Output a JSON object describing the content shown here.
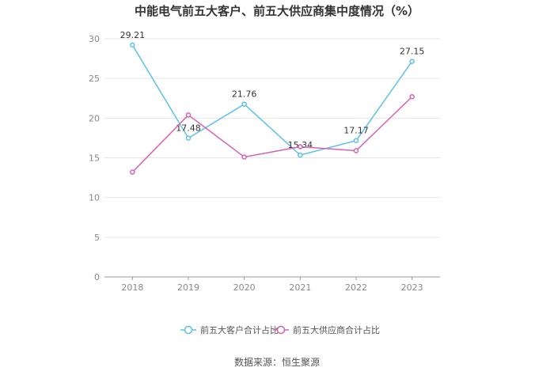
{
  "chart_data": {
    "type": "line",
    "title": "中能电气前五大客户、前五大供应商集中度情况（%）",
    "categories": [
      "2018",
      "2019",
      "2020",
      "2021",
      "2022",
      "2023"
    ],
    "ylim": [
      0,
      30
    ],
    "yticks": [
      0,
      5,
      10,
      15,
      20,
      25,
      30
    ],
    "grid": true,
    "legend_position": "bottom",
    "series": [
      {
        "name": "前五大客户合计占比",
        "color": "#5bc0eb",
        "values": [
          29.21,
          17.48,
          21.76,
          15.34,
          17.17,
          27.15
        ],
        "labels": [
          "29.21",
          "17.48",
          "21.76",
          "15.34",
          "17.17",
          "27.15"
        ]
      },
      {
        "name": "前五大供应商合计占比",
        "color": "#d462b0",
        "values": [
          13.2,
          20.4,
          15.1,
          16.4,
          15.9,
          22.7
        ]
      }
    ],
    "source": "数据来源：恒生聚源"
  }
}
